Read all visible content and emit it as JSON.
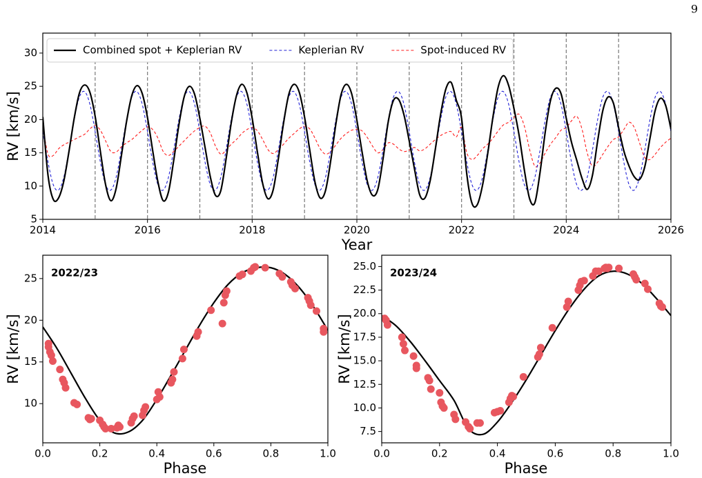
{
  "page_number": "9",
  "chart_data": [
    {
      "type": "line",
      "xlabel": "Year",
      "ylabel": "RV [km/s]",
      "xlim": [
        2014,
        2026
      ],
      "ylim": [
        5,
        33
      ],
      "xticks": [
        2014,
        2016,
        2018,
        2020,
        2022,
        2024,
        2026
      ],
      "yticks": [
        5,
        10,
        15,
        20,
        25,
        30
      ],
      "legend": "upper left",
      "vlines": [
        2015,
        2016,
        2017,
        2018,
        2019,
        2020,
        2021,
        2022,
        2023,
        2024,
        2025
      ],
      "vline_color": "#777777",
      "x": [
        2014,
        2014.1,
        2014.2,
        2014.3,
        2014.4,
        2014.5,
        2014.6,
        2014.7,
        2014.8,
        2014.9,
        2015,
        2015.1,
        2015.2,
        2015.3,
        2015.4,
        2015.5,
        2015.6,
        2015.7,
        2015.8,
        2015.9,
        2016,
        2016.1,
        2016.2,
        2016.3,
        2016.4,
        2016.5,
        2016.6,
        2016.7,
        2016.8,
        2016.9,
        2017,
        2017.1,
        2017.2,
        2017.3,
        2017.4,
        2017.5,
        2017.6,
        2017.7,
        2017.8,
        2017.9,
        2018,
        2018.1,
        2018.2,
        2018.3,
        2018.4,
        2018.5,
        2018.6,
        2018.7,
        2018.8,
        2018.9,
        2019,
        2019.1,
        2019.2,
        2019.3,
        2019.4,
        2019.5,
        2019.6,
        2019.7,
        2019.8,
        2019.9,
        2020,
        2020.1,
        2020.2,
        2020.3,
        2020.4,
        2020.5,
        2020.6,
        2020.7,
        2020.8,
        2020.9,
        2021,
        2021.1,
        2021.2,
        2021.3,
        2021.4,
        2021.5,
        2021.6,
        2021.7,
        2021.8,
        2021.9,
        2022,
        2022.1,
        2022.2,
        2022.3,
        2022.4,
        2022.5,
        2022.6,
        2022.7,
        2022.8,
        2022.9,
        2023,
        2023.1,
        2023.2,
        2023.3,
        2023.4,
        2023.5,
        2023.6,
        2023.7,
        2023.8,
        2023.9,
        2024,
        2024.1,
        2024.2,
        2024.3,
        2024.4,
        2024.5,
        2024.6,
        2024.7,
        2024.8,
        2024.9,
        2025,
        2025.1,
        2025.2,
        2025.3,
        2025.4,
        2025.5,
        2025.6,
        2025.7,
        2025.8,
        2025.9,
        2026
      ],
      "series": [
        {
          "name": "Combined spot + Keplerian RV",
          "color": "#000000",
          "dash": false,
          "values": [
            20.4,
            11.6,
            8.0,
            8.2,
            10.7,
            15.2,
            20.2,
            24.0,
            25.2,
            24.1,
            20.5,
            15.2,
            10.2,
            7.8,
            9.6,
            14.5,
            19.7,
            23.6,
            25.1,
            23.9,
            20.3,
            15.3,
            10.6,
            7.8,
            9.1,
            13.8,
            19.2,
            23.4,
            25.0,
            23.8,
            20.2,
            15.8,
            11.4,
            8.6,
            9.3,
            14.0,
            19.5,
            23.6,
            25.3,
            24.0,
            20.2,
            15.1,
            10.4,
            8.1,
            9.4,
            14.1,
            19.5,
            23.8,
            25.3,
            24.1,
            20.4,
            15.4,
            10.6,
            8.2,
            9.3,
            13.8,
            19.4,
            23.8,
            25.3,
            23.9,
            19.9,
            15.1,
            10.7,
            8.6,
            9.5,
            14.1,
            19.7,
            22.9,
            23.0,
            20.7,
            16.8,
            12.6,
            8.7,
            8.2,
            10.8,
            15.6,
            20.8,
            24.6,
            25.6,
            22.9,
            20.2,
            11.8,
            7.4,
            7.2,
            10.1,
            14.9,
            20.4,
            24.9,
            26.6,
            25.1,
            21.7,
            17.6,
            12.4,
            8.1,
            7.5,
            12.1,
            18.2,
            22.9,
            24.7,
            23.9,
            20.2,
            16.6,
            13.9,
            11.2,
            9.5,
            11.6,
            16.8,
            21.4,
            23.4,
            22.5,
            18.8,
            15.3,
            13.0,
            11.4,
            11.0,
            12.9,
            17.2,
            21.4,
            23.2,
            22.1,
            18.6
          ]
        },
        {
          "name": "Keplerian RV",
          "color": "#1f1fd6",
          "dash": true,
          "values": [
            18.2,
            13.6,
            10.2,
            9.4,
            11.3,
            15.4,
            20.0,
            23.4,
            24.2,
            22.3,
            18.2,
            13.6,
            10.2,
            9.4,
            11.3,
            15.4,
            20.0,
            23.4,
            24.2,
            22.3,
            18.2,
            13.6,
            10.2,
            9.4,
            11.3,
            15.4,
            20.0,
            23.4,
            24.2,
            22.3,
            18.2,
            13.6,
            10.2,
            9.4,
            11.3,
            15.4,
            20.0,
            23.4,
            24.2,
            22.3,
            18.2,
            13.6,
            10.2,
            9.4,
            11.3,
            15.4,
            20.0,
            23.4,
            24.2,
            22.3,
            18.2,
            13.6,
            10.2,
            9.4,
            11.3,
            15.4,
            20.0,
            23.4,
            24.2,
            22.3,
            18.2,
            13.6,
            10.2,
            9.4,
            11.3,
            15.4,
            20.0,
            23.4,
            24.2,
            22.3,
            18.2,
            13.6,
            10.2,
            9.4,
            11.3,
            15.4,
            20.0,
            23.4,
            24.2,
            22.3,
            18.2,
            13.6,
            10.2,
            9.4,
            11.3,
            15.4,
            20.0,
            23.4,
            24.2,
            22.3,
            18.2,
            13.6,
            10.2,
            9.4,
            11.3,
            15.4,
            20.0,
            23.4,
            24.2,
            22.3,
            18.2,
            13.6,
            10.2,
            9.4,
            11.3,
            15.4,
            20.0,
            23.4,
            24.2,
            22.3,
            18.2,
            13.6,
            10.2,
            9.4,
            11.3,
            15.4,
            20.0,
            23.4,
            24.2,
            22.3,
            18.2
          ]
        },
        {
          "name": "Spot-induced RV",
          "color": "#ff1a1a",
          "dash": true,
          "values": [
            19.0,
            14.8,
            14.6,
            15.6,
            16.2,
            16.6,
            17.0,
            17.4,
            17.8,
            18.6,
            19.1,
            18.4,
            16.8,
            15.2,
            15.1,
            15.9,
            16.5,
            17.0,
            17.7,
            18.4,
            18.9,
            18.5,
            17.2,
            15.2,
            14.6,
            15.2,
            16.0,
            16.8,
            17.6,
            18.3,
            18.8,
            19.0,
            18.0,
            16.0,
            14.8,
            15.4,
            16.3,
            17.0,
            17.9,
            18.5,
            18.8,
            18.3,
            17.0,
            15.5,
            14.9,
            15.5,
            16.3,
            17.2,
            17.9,
            18.6,
            19.0,
            18.6,
            17.2,
            15.6,
            14.8,
            15.2,
            16.2,
            17.2,
            17.9,
            18.4,
            18.5,
            18.3,
            17.3,
            16.0,
            15.0,
            15.5,
            16.5,
            16.3,
            15.6,
            15.2,
            15.4,
            15.8,
            15.3,
            15.6,
            16.3,
            17.0,
            17.6,
            18.0,
            18.2,
            17.4,
            18.8,
            15.0,
            14.0,
            14.6,
            15.6,
            16.3,
            17.2,
            18.3,
            19.2,
            19.6,
            20.3,
            20.8,
            19.0,
            15.5,
            13.0,
            13.5,
            15.0,
            16.3,
            17.3,
            18.4,
            18.8,
            19.8,
            20.5,
            18.6,
            15.0,
            13.0,
            13.6,
            14.8,
            16.0,
            17.0,
            17.4,
            18.5,
            19.6,
            18.8,
            16.5,
            14.3,
            14.0,
            14.8,
            15.8,
            16.6,
            17.2
          ]
        }
      ]
    },
    {
      "type": "scatter",
      "title": "2022/23",
      "xlabel": "Phase",
      "ylabel": "RV [km/s]",
      "xlim": [
        0,
        1
      ],
      "ylim": [
        5.3,
        27.8
      ],
      "xticks": [
        {
          "value": 0,
          "label": "0.0"
        },
        0.2,
        0.4,
        0.6,
        0.8,
        {
          "value": 1,
          "label": "1.0"
        }
      ],
      "yticks": [
        10,
        15,
        20,
        25
      ],
      "color": "#e8575f",
      "x": [
        0.02,
        0.02,
        0.025,
        0.03,
        0.035,
        0.06,
        0.07,
        0.075,
        0.08,
        0.11,
        0.12,
        0.16,
        0.165,
        0.17,
        0.2,
        0.21,
        0.215,
        0.22,
        0.24,
        0.26,
        0.265,
        0.27,
        0.31,
        0.315,
        0.32,
        0.35,
        0.355,
        0.36,
        0.4,
        0.405,
        0.41,
        0.45,
        0.455,
        0.46,
        0.49,
        0.495,
        0.54,
        0.545,
        0.59,
        0.63,
        0.635,
        0.64,
        0.645,
        0.69,
        0.7,
        0.73,
        0.74,
        0.745,
        0.78,
        0.83,
        0.84,
        0.87,
        0.875,
        0.885,
        0.93,
        0.935,
        0.94,
        0.96,
        0.985,
        0.985
      ],
      "values": [
        17.2,
        16.8,
        16.2,
        15.8,
        15.1,
        14.1,
        12.9,
        12.5,
        11.9,
        10.1,
        9.9,
        8.3,
        8.1,
        8.2,
        8.0,
        7.5,
        7.2,
        7.0,
        7.0,
        7.1,
        7.4,
        7.2,
        7.7,
        8.2,
        8.5,
        8.6,
        9.2,
        9.6,
        10.5,
        11.4,
        10.8,
        12.5,
        12.9,
        13.8,
        15.4,
        16.5,
        18.1,
        18.6,
        21.2,
        19.6,
        22.1,
        23.0,
        23.5,
        25.3,
        25.5,
        25.9,
        26.3,
        26.4,
        26.3,
        25.6,
        25.2,
        24.6,
        24.2,
        23.8,
        22.7,
        22.3,
        21.8,
        21.1,
        19.0,
        18.6
      ],
      "fit": {
        "color": "#000000",
        "x": [
          0,
          0.05,
          0.1,
          0.15,
          0.2,
          0.25,
          0.3,
          0.35,
          0.4,
          0.45,
          0.5,
          0.55,
          0.6,
          0.65,
          0.7,
          0.75,
          0.8,
          0.85,
          0.9,
          0.95,
          1
        ],
        "values": [
          19.2,
          16.6,
          13.6,
          10.6,
          8.0,
          6.5,
          6.6,
          8.0,
          10.5,
          13.4,
          16.4,
          19.4,
          22.1,
          24.3,
          25.7,
          26.3,
          26.3,
          25.5,
          23.9,
          21.6,
          18.8
        ]
      }
    },
    {
      "type": "scatter",
      "title": "2023/24",
      "xlabel": "Phase",
      "ylabel": "RV [km/s]",
      "xlim": [
        0,
        1
      ],
      "ylim": [
        6.3,
        26.2
      ],
      "xticks": [
        {
          "value": 0,
          "label": "0.0"
        },
        0.2,
        0.4,
        0.6,
        0.8,
        {
          "value": 1,
          "label": "1.0"
        }
      ],
      "yticks": [
        7.5,
        {
          "value": 10,
          "label": "10.0"
        },
        12.5,
        {
          "value": 15,
          "label": "15.0"
        },
        17.5,
        {
          "value": 20,
          "label": "20.0"
        },
        22.5,
        {
          "value": 25,
          "label": "25.0"
        }
      ],
      "color": "#e8575f",
      "x": [
        0.01,
        0.015,
        0.02,
        0.07,
        0.075,
        0.08,
        0.11,
        0.12,
        0.12,
        0.16,
        0.165,
        0.17,
        0.2,
        0.205,
        0.21,
        0.215,
        0.25,
        0.255,
        0.29,
        0.3,
        0.305,
        0.33,
        0.34,
        0.39,
        0.4,
        0.41,
        0.44,
        0.445,
        0.45,
        0.455,
        0.49,
        0.54,
        0.545,
        0.55,
        0.59,
        0.64,
        0.645,
        0.68,
        0.685,
        0.69,
        0.7,
        0.73,
        0.74,
        0.75,
        0.77,
        0.775,
        0.78,
        0.785,
        0.82,
        0.87,
        0.875,
        0.88,
        0.91,
        0.92,
        0.96,
        0.965,
        0.97
      ],
      "values": [
        19.5,
        19.3,
        18.8,
        17.5,
        16.8,
        16.1,
        15.5,
        14.5,
        14.2,
        13.2,
        12.9,
        12.0,
        11.6,
        10.6,
        10.2,
        10.0,
        9.3,
        8.8,
        8.5,
        8.0,
        7.8,
        8.4,
        8.4,
        9.5,
        9.6,
        9.7,
        10.6,
        11.0,
        11.3,
        11.2,
        13.3,
        15.4,
        15.7,
        16.4,
        18.5,
        20.7,
        21.3,
        22.5,
        23.0,
        23.4,
        23.5,
        24.0,
        24.5,
        24.5,
        24.8,
        24.9,
        24.8,
        24.9,
        24.8,
        24.2,
        23.9,
        23.6,
        23.2,
        22.6,
        21.1,
        20.8,
        20.7
      ],
      "fit": {
        "color": "#000000",
        "x": [
          0,
          0.05,
          0.1,
          0.15,
          0.2,
          0.25,
          0.3,
          0.35,
          0.4,
          0.45,
          0.5,
          0.55,
          0.6,
          0.65,
          0.7,
          0.75,
          0.8,
          0.85,
          0.9,
          0.95,
          1
        ],
        "values": [
          19.8,
          18.7,
          17.0,
          15.0,
          12.9,
          10.8,
          7.8,
          7.2,
          8.5,
          10.6,
          13.0,
          15.6,
          18.2,
          20.6,
          22.6,
          24.0,
          24.5,
          24.2,
          23.2,
          21.6,
          19.8
        ]
      }
    }
  ]
}
